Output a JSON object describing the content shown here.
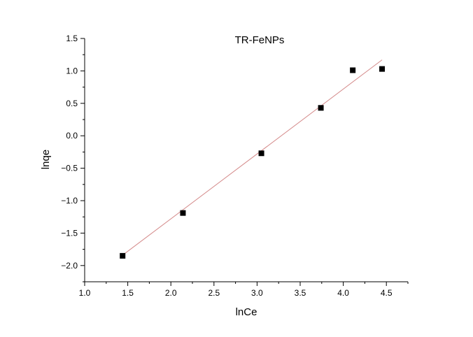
{
  "chart_data": {
    "type": "scatter",
    "title": "TR-FeNPs",
    "xlabel": "lnCe",
    "ylabel": "lnqe",
    "xlim": [
      1.0,
      4.75
    ],
    "ylim": [
      -2.25,
      1.5
    ],
    "x_ticks": [
      1.0,
      1.5,
      2.0,
      2.5,
      3.0,
      3.5,
      4.0,
      4.5
    ],
    "x_tick_labels": [
      "1.0",
      "1.5",
      "2.0",
      "2.5",
      "3.0",
      "3.5",
      "4.0",
      "4.5"
    ],
    "y_ticks": [
      -2.0,
      -1.5,
      -1.0,
      -0.5,
      0.0,
      0.5,
      1.0,
      1.5
    ],
    "y_tick_labels": [
      "−2.0",
      "−1.5",
      "−1.0",
      "−0.5",
      "0.0",
      "0.5",
      "1.0",
      "1.5"
    ],
    "grid": false,
    "series": [
      {
        "marker": "square",
        "color": "#000000",
        "points": [
          {
            "x": 1.44,
            "y": -1.85
          },
          {
            "x": 2.14,
            "y": -1.19
          },
          {
            "x": 3.05,
            "y": -0.27
          },
          {
            "x": 3.74,
            "y": 0.43
          },
          {
            "x": 4.11,
            "y": 1.01
          },
          {
            "x": 4.45,
            "y": 1.03
          }
        ]
      }
    ],
    "fit_line": {
      "color": "#d48a8a",
      "from": {
        "x": 1.44,
        "y": -1.84
      },
      "to": {
        "x": 4.45,
        "y": 1.17
      }
    }
  }
}
